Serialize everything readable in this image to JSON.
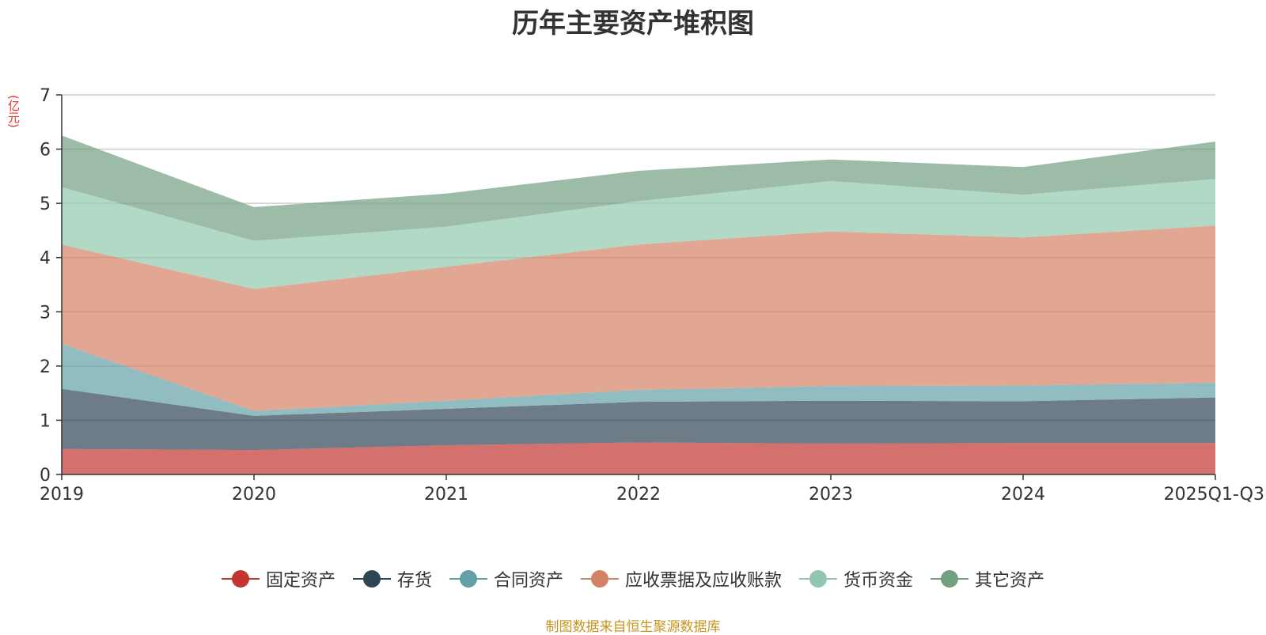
{
  "chart_data": {
    "type": "area",
    "stacked": true,
    "title": "历年主要资产堆积图",
    "ylabel": "(亿元)",
    "xlabel": "",
    "ylim": [
      0,
      7
    ],
    "yticks": [
      "0",
      "1",
      "2",
      "3",
      "4",
      "5",
      "6",
      "7"
    ],
    "categories": [
      "2019",
      "2020",
      "2021",
      "2022",
      "2023",
      "2024",
      "2025Q1-Q3"
    ],
    "series": [
      {
        "name": "固定资产",
        "color": "#c23531",
        "values": [
          0.47,
          0.45,
          0.54,
          0.59,
          0.57,
          0.58,
          0.58
        ]
      },
      {
        "name": "存货",
        "color": "#2f4554",
        "values": [
          1.11,
          0.63,
          0.67,
          0.75,
          0.79,
          0.77,
          0.84
        ]
      },
      {
        "name": "合同资产",
        "color": "#61a0a8",
        "values": [
          0.83,
          0.09,
          0.15,
          0.22,
          0.27,
          0.29,
          0.27
        ]
      },
      {
        "name": "应收票据及应收账款",
        "color": "#d48265",
        "values": [
          1.83,
          2.25,
          2.47,
          2.68,
          2.85,
          2.73,
          2.9
        ]
      },
      {
        "name": "货币资金",
        "color": "#91c7ae",
        "values": [
          1.06,
          0.89,
          0.74,
          0.8,
          0.93,
          0.79,
          0.86
        ]
      },
      {
        "name": "其它资产",
        "color": "#749f83",
        "values": [
          0.95,
          0.62,
          0.61,
          0.56,
          0.4,
          0.51,
          0.69
        ]
      }
    ]
  },
  "footer": {
    "source": "制图数据来自恒生聚源数据库"
  }
}
